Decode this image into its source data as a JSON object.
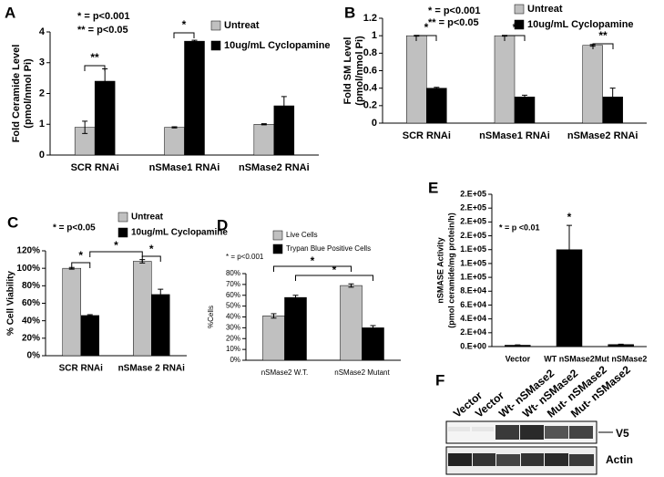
{
  "chart_data": [
    {
      "type": "bar",
      "panel": "A",
      "ylabel": [
        "Fold Ceramide Level",
        "(pmol/nmol Pi)"
      ],
      "annotations": [
        "*  = p<0.001",
        "** = p<0.05"
      ],
      "categories": [
        "SCR RNAi",
        "nSMase1 RNAi",
        "nSMase2 RNAi"
      ],
      "series": [
        {
          "name": "Untreat",
          "color": "#c0c0c0",
          "values": [
            0.9,
            0.9,
            1.0
          ],
          "errors": [
            0.2,
            0.02,
            0.02
          ]
        },
        {
          "name": "10ug/mL Cyclopamine",
          "color": "#000000",
          "values": [
            2.4,
            3.7,
            1.6
          ],
          "errors": [
            0.4,
            0.03,
            0.3
          ]
        }
      ],
      "ylim": [
        0,
        4
      ],
      "yticks": [
        0,
        1,
        2,
        3,
        4
      ],
      "significance": [
        "**",
        "*"
      ]
    },
    {
      "type": "bar",
      "panel": "B",
      "ylabel": [
        "Fold SM Level",
        "(pmol/nmol Pi)"
      ],
      "annotations": [
        "*  = p<0.001",
        "** = p<0.05"
      ],
      "categories": [
        "SCR RNAi",
        "nSMase1 RNAi",
        "nSMase2 RNAi"
      ],
      "series": [
        {
          "name": "Untreat",
          "color": "#c0c0c0",
          "values": [
            1.0,
            1.0,
            0.89
          ],
          "errors": [
            0.005,
            0.005,
            0.01
          ]
        },
        {
          "name": "10ug/mL Cyclopamine",
          "color": "#000000",
          "values": [
            0.4,
            0.3,
            0.3
          ],
          "errors": [
            0.01,
            0.02,
            0.1
          ]
        }
      ],
      "ylim": [
        0,
        1.2
      ],
      "yticks": [
        0,
        0.2,
        0.4,
        0.6,
        0.8,
        1,
        1.2
      ],
      "significance": [
        "*",
        "*",
        "**"
      ]
    },
    {
      "type": "bar",
      "panel": "C",
      "ylabel": [
        "% Cell Viability"
      ],
      "annotations": [
        "* = p<0.05"
      ],
      "categories": [
        "SCR RNAi",
        "nSMase 2 RNAi"
      ],
      "series": [
        {
          "name": "Untreat",
          "color": "#c0c0c0",
          "values": [
            100,
            108
          ],
          "errors": [
            1,
            2
          ]
        },
        {
          "name": "10ug/mL Cyclopamine",
          "color": "#000000",
          "values": [
            46,
            70
          ],
          "errors": [
            1,
            6
          ]
        }
      ],
      "ylim": [
        0,
        120
      ],
      "yticks": [
        {
          "value": 0,
          "label": "0%"
        },
        {
          "value": 20,
          "label": "20%"
        },
        {
          "value": 40,
          "label": "40%"
        },
        {
          "value": 60,
          "label": "60%"
        },
        {
          "value": 80,
          "label": "80%"
        },
        {
          "value": 100,
          "label": "100%"
        },
        {
          "value": 120,
          "label": "120%"
        }
      ],
      "significance": [
        "*",
        "*",
        "*"
      ]
    },
    {
      "type": "bar",
      "panel": "D",
      "ylabel": [
        "%Cells"
      ],
      "annotations": [
        "* = p<0.001"
      ],
      "categories": [
        "nSMase2 W.T.",
        "nSMase2 Mutant"
      ],
      "series": [
        {
          "name": "Live Cells",
          "color": "#c0c0c0",
          "values": [
            41,
            69
          ],
          "errors": [
            2,
            1.5
          ]
        },
        {
          "name": "Trypan Blue Positive Cells",
          "color": "#000000",
          "values": [
            58,
            30
          ],
          "errors": [
            2,
            2
          ]
        }
      ],
      "ylim": [
        0,
        80
      ],
      "yticks": [
        {
          "value": 0,
          "label": "0%"
        },
        {
          "value": 10,
          "label": "10%"
        },
        {
          "value": 20,
          "label": "20%"
        },
        {
          "value": 30,
          "label": "30%"
        },
        {
          "value": 40,
          "label": "40%"
        },
        {
          "value": 50,
          "label": "50%"
        },
        {
          "value": 60,
          "label": "60%"
        },
        {
          "value": 70,
          "label": "70%"
        },
        {
          "value": 80,
          "label": "80%"
        }
      ],
      "significance": [
        "*",
        "*"
      ]
    },
    {
      "type": "bar",
      "panel": "E",
      "ylabel": [
        "nSMASE Activity",
        "(pmol ceramide/mg protein/h)"
      ],
      "annotations": [
        "* = p <0.01"
      ],
      "categories": [
        "Vector",
        "WT nSMase2",
        "Mut nSMase2"
      ],
      "color": "#000000",
      "values": [
        2000,
        140000,
        3000
      ],
      "errors": [
        500,
        35000,
        500
      ],
      "ylim": [
        0,
        220000
      ],
      "yticks": [
        {
          "value": 0,
          "label": "0.E+00"
        },
        {
          "value": 20000,
          "label": "2.E+04"
        },
        {
          "value": 40000,
          "label": "4.E+04"
        },
        {
          "value": 60000,
          "label": "6.E+04"
        },
        {
          "value": 80000,
          "label": "8.E+04"
        },
        {
          "value": 100000,
          "label": "1.E+05"
        },
        {
          "value": 120000,
          "label": "1.E+05"
        },
        {
          "value": 140000,
          "label": "1.E+05"
        },
        {
          "value": 160000,
          "label": "2.E+05"
        },
        {
          "value": 180000,
          "label": "2.E+05"
        },
        {
          "value": 200000,
          "label": "2.E+05"
        },
        {
          "value": 220000,
          "label": "2.E+05"
        }
      ],
      "significance": [
        "*"
      ]
    }
  ],
  "blot": {
    "panel": "F",
    "lanes": [
      "Vector",
      "Vector",
      "Wt- nSMase2",
      "Wt- nSMase2",
      "Mut- nSMase2",
      "Mut- nSMase2"
    ],
    "bands": [
      "V5",
      "Actin"
    ]
  }
}
